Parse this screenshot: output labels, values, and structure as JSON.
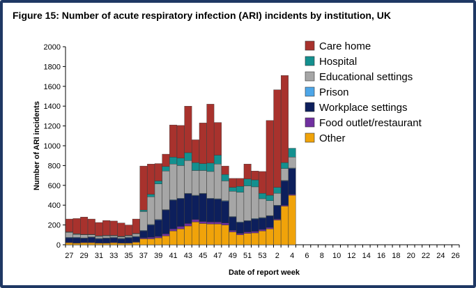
{
  "title": "Figure 15: Number of acute respiratory infection (ARI) incidents by institution, UK",
  "chart_data": {
    "type": "bar",
    "stacked": true,
    "xlabel": "Date of report week",
    "ylabel": "Number of ARI incidents",
    "ylim": [
      0,
      2000
    ],
    "yticks": [
      0,
      200,
      400,
      600,
      800,
      1000,
      1200,
      1400,
      1600,
      1800,
      2000
    ],
    "categories": [
      "27",
      "28",
      "29",
      "30",
      "31",
      "32",
      "33",
      "34",
      "35",
      "36",
      "37",
      "38",
      "39",
      "40",
      "41",
      "42",
      "43",
      "44",
      "45",
      "46",
      "47",
      "48",
      "49",
      "50",
      "51",
      "52",
      "53",
      "1",
      "2",
      "3",
      "4",
      "5",
      "6",
      "7",
      "8",
      "9",
      "10",
      "11",
      "12",
      "13",
      "14",
      "15",
      "16",
      "17",
      "18",
      "19",
      "20",
      "21",
      "22",
      "23",
      "24",
      "25",
      "26"
    ],
    "tick_labels": [
      "27",
      "29",
      "31",
      "33",
      "35",
      "37",
      "39",
      "41",
      "43",
      "45",
      "47",
      "49",
      "51",
      "53",
      "2",
      "4",
      "6",
      "8",
      "10",
      "12",
      "14",
      "16",
      "18",
      "20",
      "22",
      "24",
      "26"
    ],
    "series": [
      {
        "name": "Other",
        "color": "#f0a30a",
        "values": [
          20,
          15,
          20,
          20,
          15,
          15,
          20,
          15,
          15,
          25,
          60,
          60,
          70,
          90,
          140,
          160,
          190,
          230,
          215,
          210,
          210,
          200,
          130,
          100,
          115,
          120,
          140,
          160,
          250,
          390,
          500,
          0,
          0,
          0,
          0,
          0,
          0,
          0,
          0,
          0,
          0,
          0,
          0,
          0,
          0,
          0,
          0,
          0,
          0,
          0,
          0,
          0,
          0
        ]
      },
      {
        "name": "Food outlet/restaurant",
        "color": "#7030a0",
        "values": [
          5,
          5,
          5,
          5,
          5,
          5,
          5,
          5,
          5,
          5,
          10,
          15,
          15,
          20,
          20,
          25,
          25,
          25,
          20,
          20,
          20,
          20,
          15,
          15,
          15,
          15,
          15,
          15,
          10,
          10,
          10,
          0,
          0,
          0,
          0,
          0,
          0,
          0,
          0,
          0,
          0,
          0,
          0,
          0,
          0,
          0,
          0,
          0,
          0,
          0,
          0,
          0,
          0
        ]
      },
      {
        "name": "Workplace settings",
        "color": "#0d1f5c",
        "values": [
          45,
          50,
          40,
          50,
          40,
          45,
          45,
          40,
          50,
          50,
          70,
          125,
          165,
          240,
          290,
          280,
          300,
          240,
          280,
          235,
          230,
          220,
          135,
          110,
          110,
          125,
          115,
          115,
          135,
          245,
          260,
          0,
          0,
          0,
          0,
          0,
          0,
          0,
          0,
          0,
          0,
          0,
          0,
          0,
          0,
          0,
          0,
          0,
          0,
          0,
          0,
          0,
          0
        ]
      },
      {
        "name": "Prison",
        "color": "#4da6e8",
        "values": [
          5,
          5,
          5,
          5,
          5,
          5,
          5,
          5,
          5,
          5,
          5,
          5,
          5,
          5,
          5,
          5,
          5,
          5,
          5,
          5,
          5,
          5,
          5,
          5,
          5,
          5,
          5,
          5,
          5,
          5,
          5,
          0,
          0,
          0,
          0,
          0,
          0,
          0,
          0,
          0,
          0,
          0,
          0,
          0,
          0,
          0,
          0,
          0,
          0,
          0,
          0,
          0,
          0
        ]
      },
      {
        "name": "Educational settings",
        "color": "#a6a6a6",
        "values": [
          50,
          30,
          30,
          20,
          20,
          20,
          15,
          15,
          15,
          25,
          190,
          280,
          360,
          390,
          360,
          330,
          330,
          250,
          230,
          270,
          350,
          200,
          255,
          300,
          350,
          320,
          190,
          150,
          120,
          120,
          110,
          0,
          0,
          0,
          0,
          0,
          0,
          0,
          0,
          0,
          0,
          0,
          0,
          0,
          0,
          0,
          0,
          0,
          0,
          0,
          0,
          0,
          0
        ]
      },
      {
        "name": "Hospital",
        "color": "#13908f",
        "values": [
          5,
          5,
          5,
          5,
          5,
          5,
          5,
          5,
          5,
          5,
          15,
          25,
          30,
          45,
          70,
          75,
          80,
          80,
          70,
          85,
          90,
          65,
          40,
          60,
          70,
          70,
          55,
          55,
          60,
          60,
          90,
          0,
          0,
          0,
          0,
          0,
          0,
          0,
          0,
          0,
          0,
          0,
          0,
          0,
          0,
          0,
          0,
          0,
          0,
          0,
          0,
          0,
          0
        ]
      },
      {
        "name": "Care home",
        "color": "#a8322d",
        "values": [
          130,
          155,
          175,
          155,
          135,
          150,
          145,
          135,
          105,
          145,
          445,
          305,
          175,
          125,
          325,
          330,
          470,
          230,
          410,
          595,
          330,
          85,
          90,
          80,
          150,
          90,
          220,
          755,
          985,
          880,
          0,
          0,
          0,
          0,
          0,
          0,
          0,
          0,
          0,
          0,
          0,
          0,
          0,
          0,
          0,
          0,
          0,
          0,
          0,
          0,
          0,
          0,
          0
        ]
      }
    ],
    "legend_order": [
      "Care home",
      "Hospital",
      "Educational settings",
      "Prison",
      "Workplace settings",
      "Food outlet/restaurant",
      "Other"
    ],
    "legend_position": "top-right"
  }
}
